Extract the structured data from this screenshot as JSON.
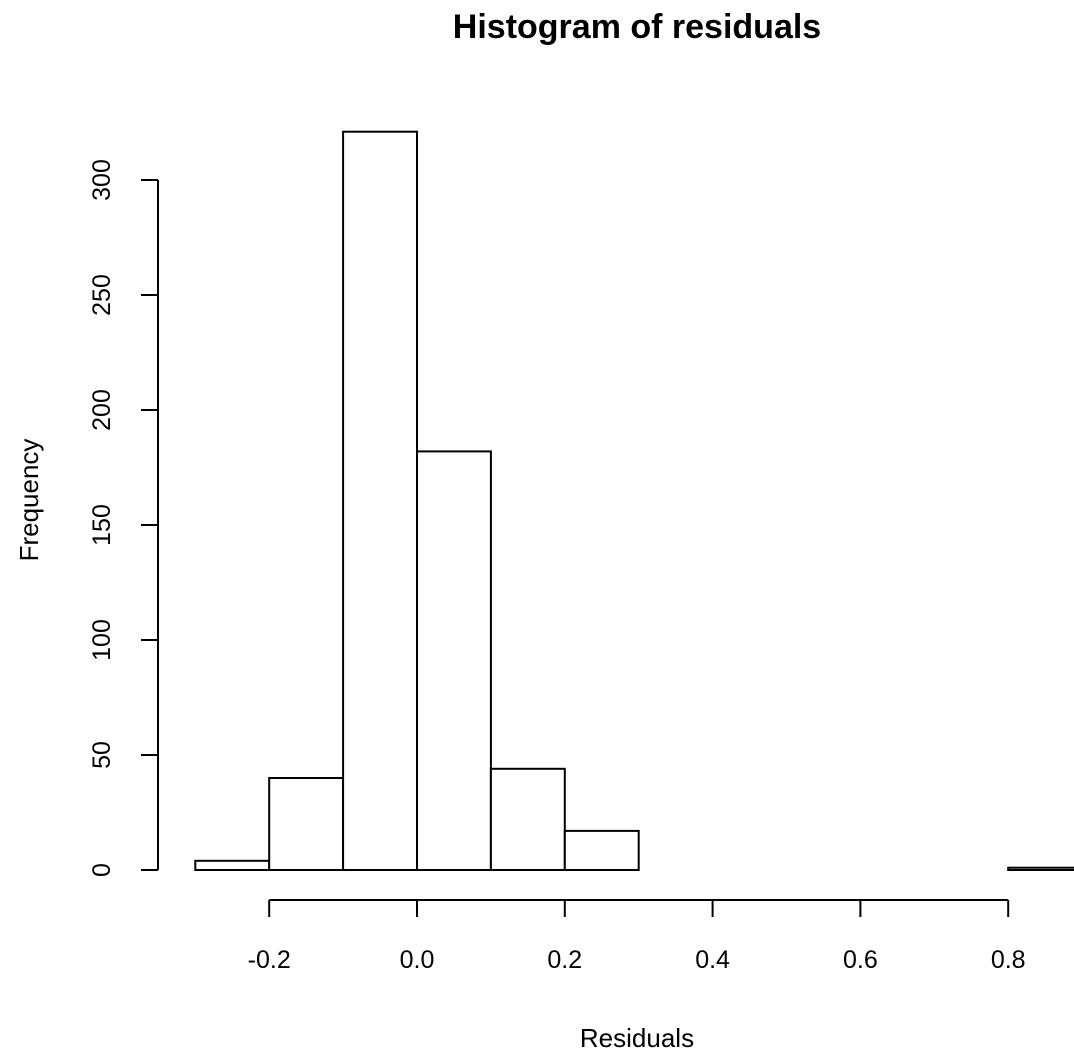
{
  "chart_data": {
    "type": "bar",
    "title": "Histogram of residuals",
    "xlabel": "Residuals",
    "ylabel": "Frequency",
    "bins": [
      {
        "from": -0.3,
        "to": -0.2,
        "count": 4
      },
      {
        "from": -0.2,
        "to": -0.1,
        "count": 40
      },
      {
        "from": -0.1,
        "to": 0.0,
        "count": 321
      },
      {
        "from": 0.0,
        "to": 0.1,
        "count": 182
      },
      {
        "from": 0.1,
        "to": 0.2,
        "count": 44
      },
      {
        "from": 0.2,
        "to": 0.3,
        "count": 17
      },
      {
        "from": 0.3,
        "to": 0.4,
        "count": 0
      },
      {
        "from": 0.4,
        "to": 0.5,
        "count": 0
      },
      {
        "from": 0.5,
        "to": 0.6,
        "count": 0
      },
      {
        "from": 0.6,
        "to": 0.7,
        "count": 0
      },
      {
        "from": 0.7,
        "to": 0.8,
        "count": 0
      },
      {
        "from": 0.8,
        "to": 0.9,
        "count": 1
      }
    ],
    "xticks": [
      "-0.2",
      "0.0",
      "0.2",
      "0.4",
      "0.6",
      "0.8"
    ],
    "xtick_values": [
      -0.2,
      0.0,
      0.2,
      0.4,
      0.6,
      0.8
    ],
    "xlim": [
      -0.3,
      0.9
    ],
    "yticks": [
      "0",
      "50",
      "100",
      "150",
      "200",
      "250",
      "300"
    ],
    "ytick_values": [
      0,
      50,
      100,
      150,
      200,
      250,
      300
    ],
    "ylim": [
      0,
      321
    ],
    "grid": false,
    "legend": "none"
  }
}
